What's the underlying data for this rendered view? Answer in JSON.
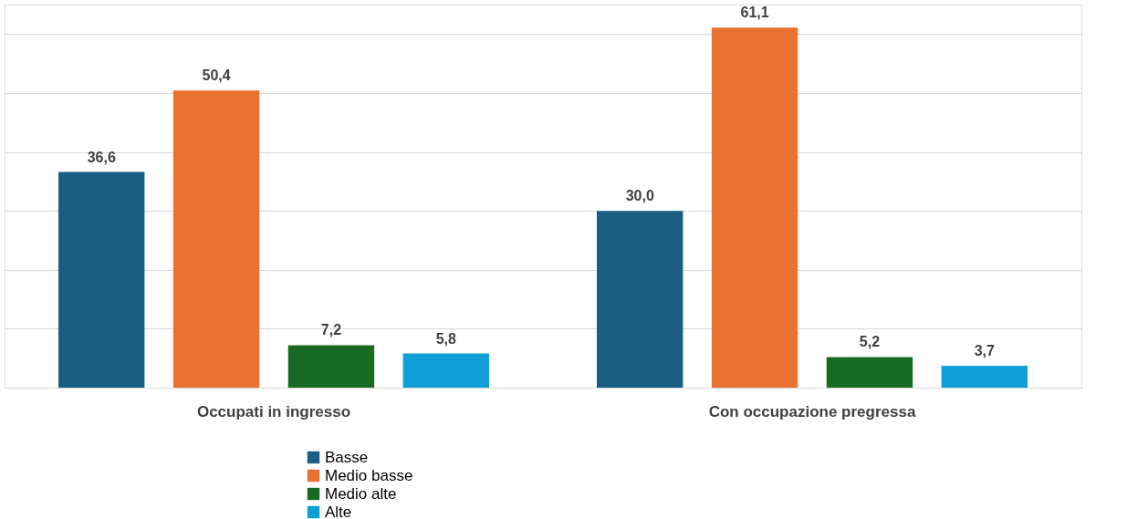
{
  "chart_data": {
    "type": "bar",
    "categories": [
      "Occupati in ingresso",
      "Con occupazione pregressa"
    ],
    "series": [
      {
        "name": "Basse",
        "color": "#1a5f83",
        "values": [
          36.6,
          30.0
        ],
        "value_labels": [
          "36,6",
          "30,0"
        ]
      },
      {
        "name": "Medio basse",
        "color": "#e97132",
        "values": [
          50.4,
          61.1
        ],
        "value_labels": [
          "50,4",
          "61,1"
        ]
      },
      {
        "name": "Medio alte",
        "color": "#196b24",
        "values": [
          7.2,
          5.2
        ],
        "value_labels": [
          "7,2",
          "5,2"
        ]
      },
      {
        "name": "Alte",
        "color": "#0f9ed5",
        "values": [
          5.8,
          3.7
        ],
        "value_labels": [
          "5,8",
          "3,7"
        ]
      }
    ],
    "grid": "y",
    "legend": "bottom",
    "tick_labels": "x"
  }
}
